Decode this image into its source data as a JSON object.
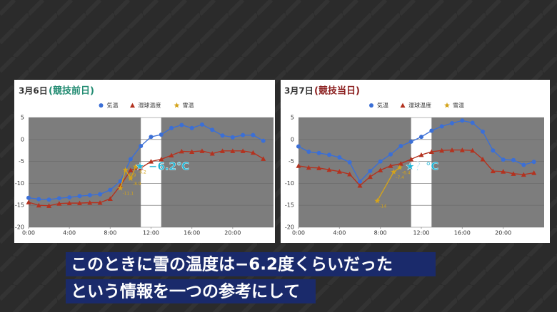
{
  "chart_data": [
    {
      "type": "line",
      "title": "3月6日",
      "subtitle": "(競技前日)",
      "subtitle_color": "#1f8a70",
      "x": [
        0,
        1,
        2,
        3,
        4,
        5,
        6,
        7,
        8,
        9,
        10,
        11,
        12,
        13,
        14,
        15,
        16,
        17,
        18,
        19,
        20,
        21,
        22,
        23
      ],
      "series": [
        {
          "name": "気温",
          "color": "#3b6fd6",
          "marker": "circle",
          "values": [
            -13.3,
            -13.6,
            -13.7,
            -13.4,
            -13.2,
            -12.9,
            -12.7,
            -12.5,
            -11.5,
            -9.5,
            -4.5,
            -1.5,
            0.6,
            1.1,
            2.6,
            3.3,
            2.6,
            3.4,
            2.2,
            0.9,
            0.5,
            1.0,
            1.0,
            -0.3
          ]
        },
        {
          "name": "湿球温度",
          "color": "#b3321f",
          "marker": "triangle",
          "values": [
            -14.3,
            -15.0,
            -15.1,
            -14.6,
            -14.5,
            -14.5,
            -14.4,
            -14.4,
            -13.5,
            -10.5,
            -7.0,
            -6.5,
            -5.0,
            -4.5,
            -3.6,
            -2.7,
            -2.8,
            -2.6,
            -3.2,
            -2.6,
            -2.6,
            -2.6,
            -3.0,
            -4.4
          ]
        },
        {
          "name": "雪温",
          "color": "#d4a31a",
          "marker": "star",
          "x": [
            9,
            9.5,
            10,
            10.5
          ],
          "values": [
            -11.1,
            -6.9,
            -8.9,
            -6.2
          ]
        }
      ],
      "highlight": [
        11,
        13
      ],
      "annotation": "★ −6.2℃",
      "xlim": [
        0,
        24
      ],
      "xticks": [
        {
          "value": 0,
          "label": "0:00"
        },
        {
          "value": 4,
          "label": "4:00"
        },
        {
          "value": 8,
          "label": "8:00"
        },
        {
          "value": 12,
          "label": "12:00"
        },
        {
          "value": 16,
          "label": "16:00"
        },
        {
          "value": 20,
          "label": "20:00"
        }
      ],
      "ylim": [
        -20,
        5
      ],
      "yticks": [
        5,
        0,
        -5,
        -10,
        -15,
        -20
      ]
    },
    {
      "type": "line",
      "title": "3月7日",
      "subtitle": "(競技当日)",
      "subtitle_color": "#8b1e1e",
      "x": [
        0,
        1,
        2,
        3,
        4,
        5,
        6,
        7,
        8,
        9,
        10,
        11,
        12,
        13,
        14,
        15,
        16,
        17,
        18,
        19,
        20,
        21,
        22,
        23
      ],
      "series": [
        {
          "name": "気温",
          "color": "#3b6fd6",
          "marker": "circle",
          "values": [
            -1.6,
            -2.8,
            -3.1,
            -3.5,
            -4.1,
            -5.2,
            -9.6,
            -7.2,
            -5.0,
            -3.4,
            -1.5,
            -0.5,
            0.6,
            2.0,
            3.0,
            3.7,
            4.3,
            3.8,
            1.8,
            -2.5,
            -4.6,
            -4.7,
            -5.8,
            -5.1
          ]
        },
        {
          "name": "湿球温度",
          "color": "#b3321f",
          "marker": "triangle",
          "values": [
            -6.0,
            -6.4,
            -6.5,
            -6.9,
            -7.3,
            -7.9,
            -10.5,
            -8.5,
            -7.0,
            -6.0,
            -5.5,
            -4.5,
            -3.5,
            -2.8,
            -2.5,
            -2.4,
            -2.4,
            -2.5,
            -4.5,
            -7.2,
            -7.3,
            -7.8,
            -8.0,
            -7.6
          ]
        },
        {
          "name": "雪温",
          "color": "#d4a31a",
          "marker": "star",
          "x": [
            7.7,
            9.3,
            9.9
          ],
          "values": [
            -14,
            -7.4,
            -6.4
          ]
        }
      ],
      "highlight": [
        11,
        13
      ],
      "annotation": "★？℃",
      "xlim": [
        0,
        24
      ],
      "xticks": [
        {
          "value": 0,
          "label": "0:00"
        },
        {
          "value": 4,
          "label": "4:00"
        },
        {
          "value": 8,
          "label": "8:00"
        },
        {
          "value": 12,
          "label": "12:00"
        },
        {
          "value": 16,
          "label": "16:00"
        },
        {
          "value": 20,
          "label": "20:00"
        }
      ],
      "ylim": [
        -20,
        5
      ],
      "yticks": [
        5,
        0,
        -5,
        -10,
        -15,
        -20
      ]
    }
  ],
  "captions": [
    "このときに雪の温度は−6.2度くらいだった",
    "という情報を一つの参考にして"
  ]
}
